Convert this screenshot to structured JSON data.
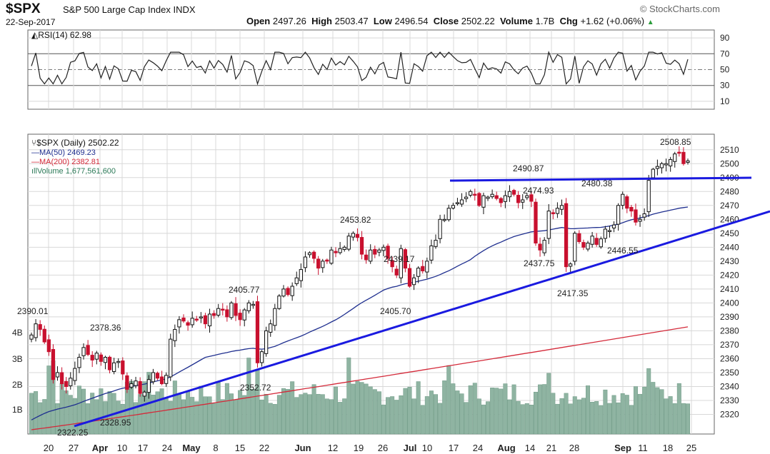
{
  "header": {
    "symbol": "$SPX",
    "name": "S&P 500 Large Cap Index",
    "exchange": "INDX",
    "date": "22-Sep-2017",
    "brand": "© StockCharts.com",
    "open_label": "Open",
    "open": "2497.26",
    "high_label": "High",
    "high": "2503.47",
    "low_label": "Low",
    "low": "2496.54",
    "close_label": "Close",
    "close": "2502.22",
    "volume_label": "Volume",
    "volume": "1.7B",
    "chg_label": "Chg",
    "chg": "+1.62 (+0.06%)",
    "chg_arrow": "▲"
  },
  "colors": {
    "up": "#111111",
    "down": "#c8102e",
    "ma50": "#1f2f8f",
    "ma200": "#d42a3a",
    "volume": "#8fb4a2",
    "trendline": "#1a1ae0",
    "grid": "#d8d8d8"
  },
  "rsi_panel": {
    "label": "RSI(14) 62.98",
    "ticks": [
      "90",
      "70",
      "50",
      "30",
      "10"
    ]
  },
  "legend": {
    "price": "$SPX (Daily) 2502.22",
    "ma50": "MA(50) 2469.23",
    "ma200": "MA(200) 2382.81",
    "volume": "Volume 1,677,561,600"
  },
  "chart_data": {
    "type": "candlestick",
    "ylim": [
      2310,
      2515
    ],
    "y_ticks": [
      "2510",
      "2500",
      "2490",
      "2480",
      "2470",
      "2460",
      "2450",
      "2440",
      "2430",
      "2420",
      "2410",
      "2400",
      "2390",
      "2380",
      "2370",
      "2360",
      "2350",
      "2340",
      "2330",
      "2320"
    ],
    "volume_ticks": [
      "4B",
      "3B",
      "2B",
      "1B"
    ],
    "x_ticks": [
      "20",
      "27",
      "Apr",
      "10",
      "17",
      "24",
      "May",
      "8",
      "15",
      "22",
      "Jun",
      "12",
      "19",
      "26",
      "Jul",
      "10",
      "17",
      "24",
      "Aug",
      "14",
      "21",
      "28",
      "Sep",
      "11",
      "18",
      "25"
    ],
    "annotations": [
      "2390.01",
      "2378.36",
      "2322.25",
      "2328.95",
      "2405.77",
      "2352.72",
      "2453.82",
      "2439.17",
      "2405.70",
      "2490.87",
      "2474.93",
      "2437.75",
      "2417.35",
      "2480.38",
      "2446.55",
      "2508.85"
    ],
    "closes": [
      2377,
      2385,
      2381,
      2372,
      2365,
      2345,
      2350,
      2342,
      2340,
      2346,
      2353,
      2361,
      2368,
      2363,
      2359,
      2364,
      2358,
      2361,
      2352,
      2357,
      2358,
      2349,
      2338,
      2342,
      2344,
      2335,
      2336,
      2345,
      2350,
      2346,
      2342,
      2348,
      2374,
      2381,
      2388,
      2387,
      2384,
      2389,
      2388,
      2390,
      2385,
      2392,
      2391,
      2396,
      2395,
      2390,
      2400,
      2391,
      2388,
      2395,
      2400,
      2399,
      2357,
      2365,
      2380,
      2385,
      2396,
      2405,
      2410,
      2406,
      2412,
      2418,
      2424,
      2433,
      2436,
      2432,
      2425,
      2430,
      2430,
      2438,
      2436,
      2439,
      2440,
      2448,
      2450,
      2447,
      2435,
      2431,
      2438,
      2435,
      2438,
      2440,
      2432,
      2426,
      2420,
      2439,
      2425,
      2412,
      2418,
      2425,
      2423,
      2430,
      2441,
      2445,
      2460,
      2460,
      2468,
      2470,
      2472,
      2474,
      2476,
      2480,
      2478,
      2470,
      2477,
      2476,
      2478,
      2475,
      2472,
      2477,
      2480,
      2478,
      2472,
      2474,
      2477,
      2473,
      2443,
      2438,
      2445,
      2466,
      2464,
      2468,
      2470,
      2426,
      2428,
      2450,
      2444,
      2440,
      2443,
      2448,
      2442,
      2446,
      2453,
      2452,
      2456,
      2470,
      2478,
      2468,
      2466,
      2458,
      2460,
      2464,
      2488,
      2496,
      2498,
      2500,
      2500,
      2503,
      2507,
      2508,
      2500,
      2502
    ],
    "ma50_first": 2316,
    "ma50_last": 2469.23,
    "ma200_first": 2309,
    "ma200_last": 2382.81,
    "rsi_last": 62.98,
    "support_line": {
      "from": [
        2322,
        "late Mar"
      ],
      "to": [
        2465,
        "Sep 25"
      ]
    },
    "resistance_line": {
      "level": 2491
    }
  }
}
